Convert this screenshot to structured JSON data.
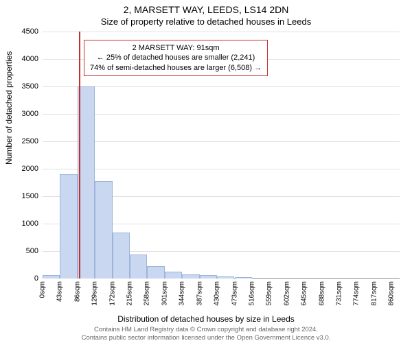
{
  "title": "2, MARSETT WAY, LEEDS, LS14 2DN",
  "subtitle": "Size of property relative to detached houses in Leeds",
  "ylabel": "Number of detached properties",
  "xlabel": "Distribution of detached houses by size in Leeds",
  "footer_line1": "Contains HM Land Registry data © Crown copyright and database right 2024.",
  "footer_line2": "Contains public sector information licensed under the Open Government Licence v3.0.",
  "chart": {
    "type": "histogram",
    "background_color": "#ffffff",
    "grid_color": "#e0e0e0",
    "axis_color": "#888888",
    "bar_fill": "#c9d8f0",
    "bar_stroke": "#9db3d9",
    "bar_stroke_width": 1,
    "ref_line_color": "#c23030",
    "ref_line_x": 91,
    "annotation_border_color": "#c23030",
    "annotation_lines": [
      "2 MARSETT WAY: 91sqm",
      "← 25% of detached houses are smaller (2,241)",
      "74% of semi-detached houses are larger (6,508) →"
    ],
    "ylim": [
      0,
      4500
    ],
    "ytick_step": 500,
    "yticks": [
      0,
      500,
      1000,
      1500,
      2000,
      2500,
      3000,
      3500,
      4000,
      4500
    ],
    "xlim": [
      0,
      880
    ],
    "xticks": [
      0,
      43,
      86,
      129,
      172,
      215,
      258,
      301,
      344,
      387,
      430,
      473,
      516,
      559,
      602,
      645,
      688,
      731,
      774,
      817,
      860
    ],
    "xtick_unit": "sqm",
    "bars": [
      {
        "x0": 0,
        "x1": 43,
        "value": 60
      },
      {
        "x0": 43,
        "x1": 86,
        "value": 1900
      },
      {
        "x0": 86,
        "x1": 129,
        "value": 3500
      },
      {
        "x0": 129,
        "x1": 172,
        "value": 1780
      },
      {
        "x0": 172,
        "x1": 215,
        "value": 840
      },
      {
        "x0": 215,
        "x1": 258,
        "value": 440
      },
      {
        "x0": 258,
        "x1": 301,
        "value": 230
      },
      {
        "x0": 301,
        "x1": 344,
        "value": 130
      },
      {
        "x0": 344,
        "x1": 387,
        "value": 80
      },
      {
        "x0": 387,
        "x1": 430,
        "value": 60
      },
      {
        "x0": 430,
        "x1": 473,
        "value": 40
      },
      {
        "x0": 473,
        "x1": 516,
        "value": 30
      }
    ],
    "title_fontsize": 14,
    "subtitle_fontsize": 13,
    "label_fontsize": 12,
    "tick_fontsize": 11,
    "xtick_fontsize": 10,
    "annotation_fontsize": 11,
    "footer_fontsize": 9.5
  }
}
